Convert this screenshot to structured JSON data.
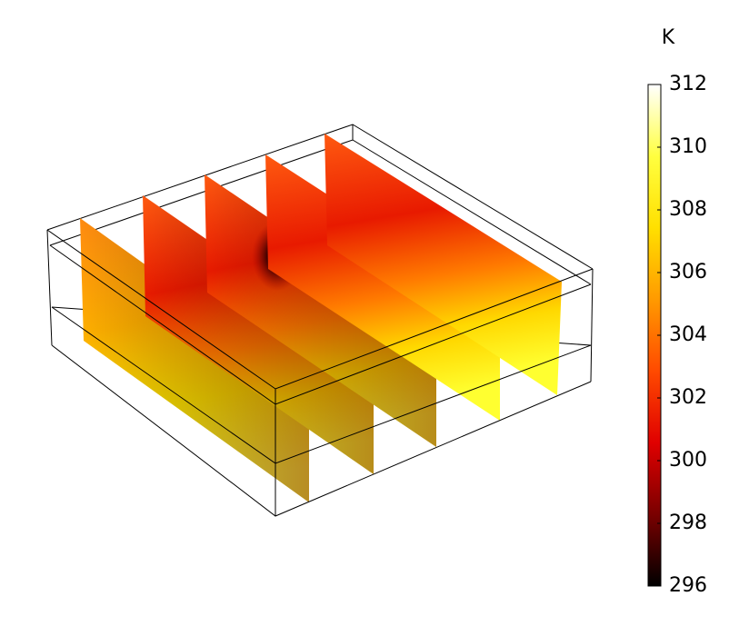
{
  "chart_data": {
    "type": "slice",
    "colorbar": {
      "label": "K",
      "lim": [
        296,
        312
      ],
      "ticks": [
        296,
        298,
        300,
        302,
        304,
        306,
        308,
        310,
        312
      ],
      "colors": [
        "#000000",
        "#7a0000",
        "#e00000",
        "#ff4a00",
        "#ff9a00",
        "#ffe000",
        "#ffff40",
        "#ffffff"
      ]
    }
  }
}
